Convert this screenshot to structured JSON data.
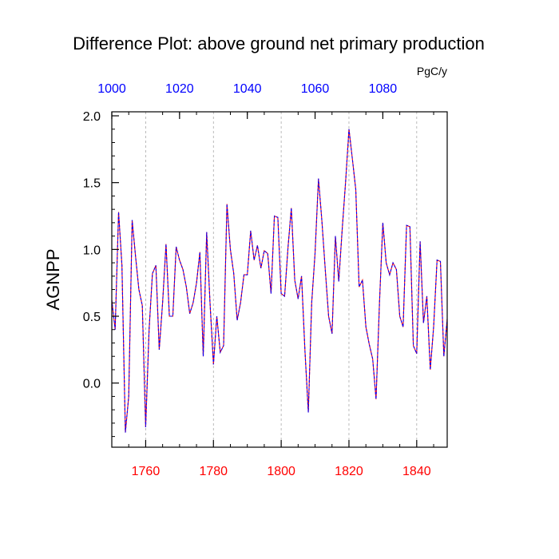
{
  "chart_data": {
    "type": "line",
    "title": "Difference Plot: above ground net primary production",
    "units_label": "PgC/y",
    "ylabel": "AGNPP",
    "xlabel": "",
    "xlim": [
      1750,
      1849
    ],
    "ylim": [
      -0.48,
      2.03
    ],
    "yticks": [
      0.0,
      0.5,
      1.0,
      1.5,
      2.0
    ],
    "ytick_labels": [
      "0.0",
      "0.5",
      "1.0",
      "1.5",
      "2.0"
    ],
    "xticks_bottom": [
      1760,
      1780,
      1800,
      1820,
      1840
    ],
    "xtick_labels_bottom": [
      "1760",
      "1780",
      "1800",
      "1820",
      "1840"
    ],
    "xticks_top": [
      1000,
      1020,
      1040,
      1060,
      1080
    ],
    "xtick_labels_top": [
      "1000",
      "1020",
      "1040",
      "1060",
      "1080"
    ],
    "top_axis_offset": 750,
    "grid": "vertical dashed at major bottom ticks",
    "colors": {
      "line_a": "#ff0000",
      "line_b": "#0000ff",
      "bottom_ticks": "#ff0000",
      "top_ticks": "#0000ff",
      "grid": "#aaaaaa"
    },
    "series": [
      {
        "x": [
          1750,
          1751,
          1752,
          1753,
          1754,
          1755,
          1756,
          1757,
          1758,
          1759,
          1760,
          1761,
          1762,
          1763,
          1764,
          1765,
          1766,
          1767,
          1768,
          1769,
          1770,
          1771,
          1772,
          1773,
          1774,
          1775,
          1776,
          1777,
          1778,
          1779,
          1780,
          1781,
          1782,
          1783,
          1784,
          1785,
          1786,
          1787,
          1788,
          1789,
          1790,
          1791,
          1792,
          1793,
          1794,
          1795,
          1796,
          1797,
          1798,
          1799,
          1800,
          1801,
          1802,
          1803,
          1804,
          1805,
          1806,
          1807,
          1808,
          1809,
          1810,
          1811,
          1812,
          1813,
          1814,
          1815,
          1816,
          1817,
          1818,
          1819,
          1820,
          1821,
          1822,
          1823,
          1824,
          1825,
          1826,
          1827,
          1828,
          1829,
          1830,
          1831,
          1832,
          1833,
          1834,
          1835,
          1836,
          1837,
          1838,
          1839,
          1840,
          1841,
          1842,
          1843,
          1844,
          1845,
          1846,
          1847,
          1848,
          1849
        ],
        "y": [
          0.62,
          0.4,
          1.28,
          0.88,
          -0.37,
          -0.1,
          1.22,
          0.95,
          0.7,
          0.58,
          -0.33,
          0.4,
          0.82,
          0.88,
          0.25,
          0.6,
          1.04,
          0.5,
          0.5,
          1.02,
          0.92,
          0.85,
          0.72,
          0.52,
          0.6,
          0.75,
          0.98,
          0.2,
          1.13,
          0.6,
          0.14,
          0.5,
          0.23,
          0.28,
          1.34,
          1.0,
          0.82,
          0.47,
          0.6,
          0.81,
          0.81,
          1.14,
          0.92,
          1.03,
          0.86,
          0.99,
          0.97,
          0.67,
          1.25,
          1.24,
          0.67,
          0.65,
          1.01,
          1.31,
          0.77,
          0.63,
          0.8,
          0.25,
          -0.22,
          0.6,
          0.97,
          1.53,
          1.22,
          0.85,
          0.5,
          0.37,
          1.1,
          0.76,
          1.15,
          1.5,
          1.9,
          1.68,
          1.45,
          0.72,
          0.77,
          0.42,
          0.29,
          0.18,
          -0.12,
          0.6,
          1.2,
          0.9,
          0.81,
          0.9,
          0.85,
          0.5,
          0.42,
          1.18,
          1.17,
          0.28,
          0.22,
          1.06,
          0.45,
          0.65,
          0.1,
          0.42,
          0.92,
          0.91,
          0.2,
          0.48
        ]
      }
    ]
  }
}
